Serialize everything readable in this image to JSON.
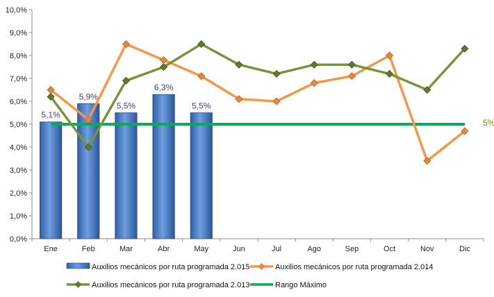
{
  "chart_data": {
    "type": "bar",
    "title": "",
    "xlabel": "",
    "ylabel": "",
    "categories": [
      "Ene",
      "Feb",
      "Mar",
      "Abr",
      "May",
      "Jun",
      "Jul",
      "Ago",
      "Sep",
      "Oct",
      "Nov",
      "Dic"
    ],
    "ylim": [
      0,
      10
    ],
    "y_ticks": [
      "0,0%",
      "1,0%",
      "2,0%",
      "3,0%",
      "4,0%",
      "5,0%",
      "6,0%",
      "7,0%",
      "8,0%",
      "9,0%",
      "10,0%"
    ],
    "grid": false,
    "legend_position": "bottom",
    "series": [
      {
        "name": "Auxilios mecánicos por ruta programada 2.015",
        "type": "bar",
        "color": "#4f81bd",
        "values": [
          5.1,
          5.9,
          5.5,
          6.3,
          5.5,
          null,
          null,
          null,
          null,
          null,
          null,
          null
        ],
        "data_labels": [
          "5,1%",
          "5,9%",
          "5,5%",
          "6,3%",
          "5,5%"
        ]
      },
      {
        "name": "Auxilios mecánicos por ruta programada 2.014",
        "type": "line",
        "color": "#f79646",
        "values": [
          6.5,
          5.2,
          8.5,
          7.8,
          7.1,
          6.1,
          6.0,
          6.8,
          7.1,
          8.0,
          3.4,
          4.7
        ]
      },
      {
        "name": "Auxilios mecánicos por ruta programada 2.013",
        "type": "line",
        "color": "#77933c",
        "values": [
          6.2,
          4.0,
          6.9,
          7.5,
          8.5,
          7.6,
          7.2,
          7.6,
          7.6,
          7.2,
          6.5,
          8.3
        ]
      },
      {
        "name": "Rango Máximo",
        "type": "line",
        "color": "#00b050",
        "values": [
          5,
          5,
          5,
          5,
          5,
          5,
          5,
          5,
          5,
          5,
          5,
          5
        ],
        "end_label": "5%"
      }
    ]
  }
}
